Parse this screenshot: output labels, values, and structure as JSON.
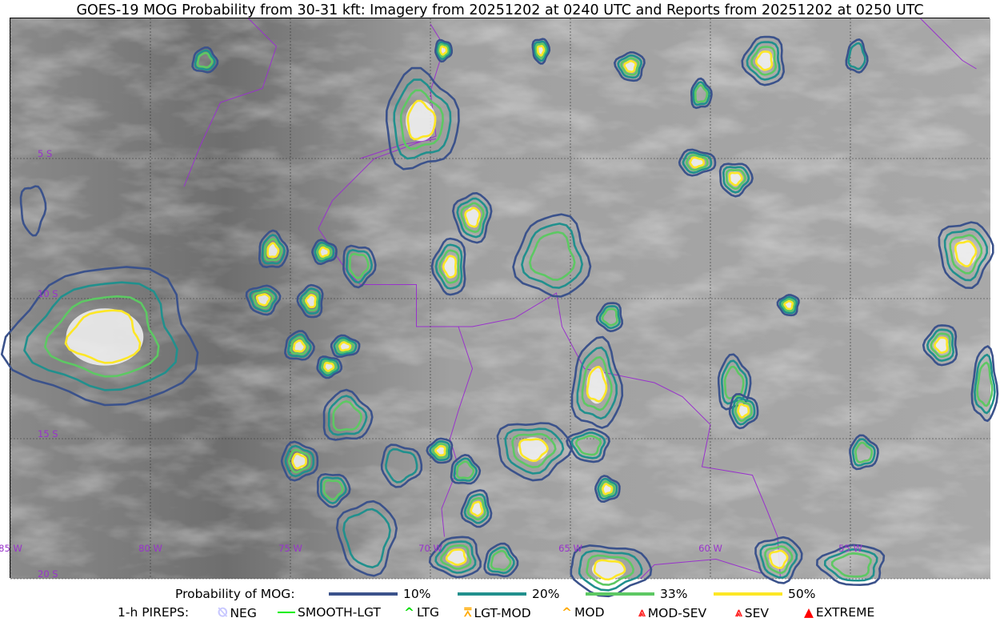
{
  "title": "GOES-19 MOG Probability from 30-31 kft: Imagery from 20251202 at 0240 UTC and Reports from 20251202 at 0250 UTC",
  "map": {
    "lon_range": [
      -85,
      -50
    ],
    "lat_range": [
      -20,
      0
    ],
    "lon_labels": [
      "85 W",
      "80 W",
      "75 W",
      "70 W",
      "65 W",
      "60 W",
      "55 W"
    ],
    "lon_values": [
      -85,
      -80,
      -75,
      -70,
      -65,
      -60,
      -55
    ],
    "lat_labels": [
      "5 S",
      "10 S",
      "15 S",
      "20 S"
    ],
    "lat_values": [
      -5,
      -10,
      -15,
      -20
    ],
    "grid_color": "#333333",
    "border_color": "#9933cc",
    "label_color": "#9933cc"
  },
  "legend": {
    "probability_label": "Probability of MOG:",
    "levels": [
      {
        "label": "10%",
        "value": 10,
        "color": "#3b528b"
      },
      {
        "label": "20%",
        "value": 20,
        "color": "#21908d"
      },
      {
        "label": "33%",
        "value": 33,
        "color": "#5dc863"
      },
      {
        "label": "50%",
        "value": 50,
        "color": "#fde725"
      }
    ],
    "pireps_label": "1-h PIREPS:",
    "pireps": [
      {
        "label": "NEG",
        "color": "#c8c8ff",
        "icon": "neg-circle-icon"
      },
      {
        "label": "SMOOTH-LGT",
        "color": "#00ee00",
        "icon": "dash-icon"
      },
      {
        "label": "LTG",
        "color": "#00dd00",
        "icon": "caret-icon"
      },
      {
        "label": "LGT-MOD",
        "color": "#ffaa00",
        "icon": "caret-bar-icon"
      },
      {
        "label": "MOD",
        "color": "#ffaa00",
        "icon": "caret-icon"
      },
      {
        "label": "MOD-SEV",
        "color": "#ff2020",
        "icon": "double-caret-bar-icon"
      },
      {
        "label": "SEV",
        "color": "#ff2020",
        "icon": "double-caret-icon"
      },
      {
        "label": "EXTREME",
        "color": "#ff0000",
        "icon": "filled-triangle-icon"
      }
    ]
  },
  "cells": [
    {
      "lon": -78.06,
      "lat": -1.51,
      "rx": 0.43,
      "ry": 0.43,
      "max": 33
    },
    {
      "lon": -70.34,
      "lat": -3.66,
      "rx": 1.29,
      "ry": 1.71,
      "max": 50
    },
    {
      "lon": -69.54,
      "lat": -1.14,
      "rx": 0.29,
      "ry": 0.36,
      "max": 50
    },
    {
      "lon": -66.06,
      "lat": -1.14,
      "rx": 0.29,
      "ry": 0.43,
      "max": 50
    },
    {
      "lon": -62.86,
      "lat": -1.71,
      "rx": 0.5,
      "ry": 0.5,
      "max": 50
    },
    {
      "lon": -58.06,
      "lat": -1.51,
      "rx": 0.71,
      "ry": 0.86,
      "max": 50
    },
    {
      "lon": -54.77,
      "lat": -1.37,
      "rx": 0.36,
      "ry": 0.57,
      "max": 20
    },
    {
      "lon": -60.34,
      "lat": -2.71,
      "rx": 0.36,
      "ry": 0.5,
      "max": 33
    },
    {
      "lon": -60.49,
      "lat": -5.14,
      "rx": 0.64,
      "ry": 0.43,
      "max": 50
    },
    {
      "lon": -59.11,
      "lat": -5.71,
      "rx": 0.57,
      "ry": 0.57,
      "max": 50
    },
    {
      "lon": -68.49,
      "lat": -7.09,
      "rx": 0.64,
      "ry": 0.86,
      "max": 50
    },
    {
      "lon": -69.29,
      "lat": -8.86,
      "rx": 0.57,
      "ry": 1.0,
      "max": 50
    },
    {
      "lon": -65.63,
      "lat": -8.51,
      "rx": 1.29,
      "ry": 1.43,
      "max": 33
    },
    {
      "lon": -75.63,
      "lat": -8.29,
      "rx": 0.5,
      "ry": 0.64,
      "max": 50
    },
    {
      "lon": -73.8,
      "lat": -8.34,
      "rx": 0.43,
      "ry": 0.4,
      "max": 50
    },
    {
      "lon": -72.57,
      "lat": -8.8,
      "rx": 0.57,
      "ry": 0.71,
      "max": 33
    },
    {
      "lon": -75.97,
      "lat": -10.03,
      "rx": 0.57,
      "ry": 0.5,
      "max": 50
    },
    {
      "lon": -74.26,
      "lat": -10.09,
      "rx": 0.43,
      "ry": 0.57,
      "max": 50
    },
    {
      "lon": -81.63,
      "lat": -11.37,
      "rx": 3.29,
      "ry": 2.43,
      "max": 50
    },
    {
      "lon": -74.69,
      "lat": -11.71,
      "rx": 0.5,
      "ry": 0.5,
      "max": 50
    },
    {
      "lon": -73.06,
      "lat": -11.71,
      "rx": 0.5,
      "ry": 0.36,
      "max": 50
    },
    {
      "lon": -73.63,
      "lat": -12.43,
      "rx": 0.43,
      "ry": 0.36,
      "max": 50
    },
    {
      "lon": -50.89,
      "lat": -8.37,
      "rx": 0.93,
      "ry": 1.14,
      "max": 50
    },
    {
      "lon": -57.2,
      "lat": -10.23,
      "rx": 0.36,
      "ry": 0.36,
      "max": 50
    },
    {
      "lon": -63.57,
      "lat": -10.66,
      "rx": 0.43,
      "ry": 0.5,
      "max": 33
    },
    {
      "lon": -64.06,
      "lat": -13.09,
      "rx": 0.86,
      "ry": 1.57,
      "max": 50
    },
    {
      "lon": -59.17,
      "lat": -13.03,
      "rx": 0.57,
      "ry": 0.93,
      "max": 33
    },
    {
      "lon": -58.83,
      "lat": -14.0,
      "rx": 0.5,
      "ry": 0.57,
      "max": 50
    },
    {
      "lon": -66.34,
      "lat": -15.37,
      "rx": 1.29,
      "ry": 1.0,
      "max": 50
    },
    {
      "lon": -64.34,
      "lat": -15.23,
      "rx": 0.71,
      "ry": 0.57,
      "max": 33
    },
    {
      "lon": -51.74,
      "lat": -11.66,
      "rx": 0.57,
      "ry": 0.71,
      "max": 50
    },
    {
      "lon": -50.2,
      "lat": -13.09,
      "rx": 0.43,
      "ry": 1.29,
      "max": 33
    },
    {
      "lon": -73.0,
      "lat": -14.23,
      "rx": 0.86,
      "ry": 0.86,
      "max": 33
    },
    {
      "lon": -74.69,
      "lat": -15.8,
      "rx": 0.64,
      "ry": 0.64,
      "max": 50
    },
    {
      "lon": -73.49,
      "lat": -16.8,
      "rx": 0.57,
      "ry": 0.57,
      "max": 33
    },
    {
      "lon": -72.26,
      "lat": -18.51,
      "rx": 1.0,
      "ry": 1.29,
      "max": 20
    },
    {
      "lon": -69.63,
      "lat": -15.43,
      "rx": 0.43,
      "ry": 0.43,
      "max": 50
    },
    {
      "lon": -68.34,
      "lat": -17.51,
      "rx": 0.5,
      "ry": 0.64,
      "max": 50
    },
    {
      "lon": -68.77,
      "lat": -16.14,
      "rx": 0.5,
      "ry": 0.5,
      "max": 33
    },
    {
      "lon": -63.69,
      "lat": -16.8,
      "rx": 0.43,
      "ry": 0.43,
      "max": 50
    },
    {
      "lon": -63.63,
      "lat": -19.66,
      "rx": 1.43,
      "ry": 0.86,
      "max": 50
    },
    {
      "lon": -57.57,
      "lat": -19.29,
      "rx": 0.79,
      "ry": 0.79,
      "max": 50
    },
    {
      "lon": -54.91,
      "lat": -19.51,
      "rx": 1.14,
      "ry": 0.71,
      "max": 33
    },
    {
      "lon": -69.06,
      "lat": -19.23,
      "rx": 0.86,
      "ry": 0.71,
      "max": 50
    },
    {
      "lon": -67.49,
      "lat": -19.37,
      "rx": 0.57,
      "ry": 0.57,
      "max": 33
    },
    {
      "lon": -54.54,
      "lat": -15.51,
      "rx": 0.5,
      "ry": 0.57,
      "max": 33
    },
    {
      "lon": -71.06,
      "lat": -15.94,
      "rx": 0.71,
      "ry": 0.71,
      "max": 20
    },
    {
      "lon": -84.2,
      "lat": -6.8,
      "rx": 0.43,
      "ry": 0.86,
      "max": 10
    }
  ]
}
